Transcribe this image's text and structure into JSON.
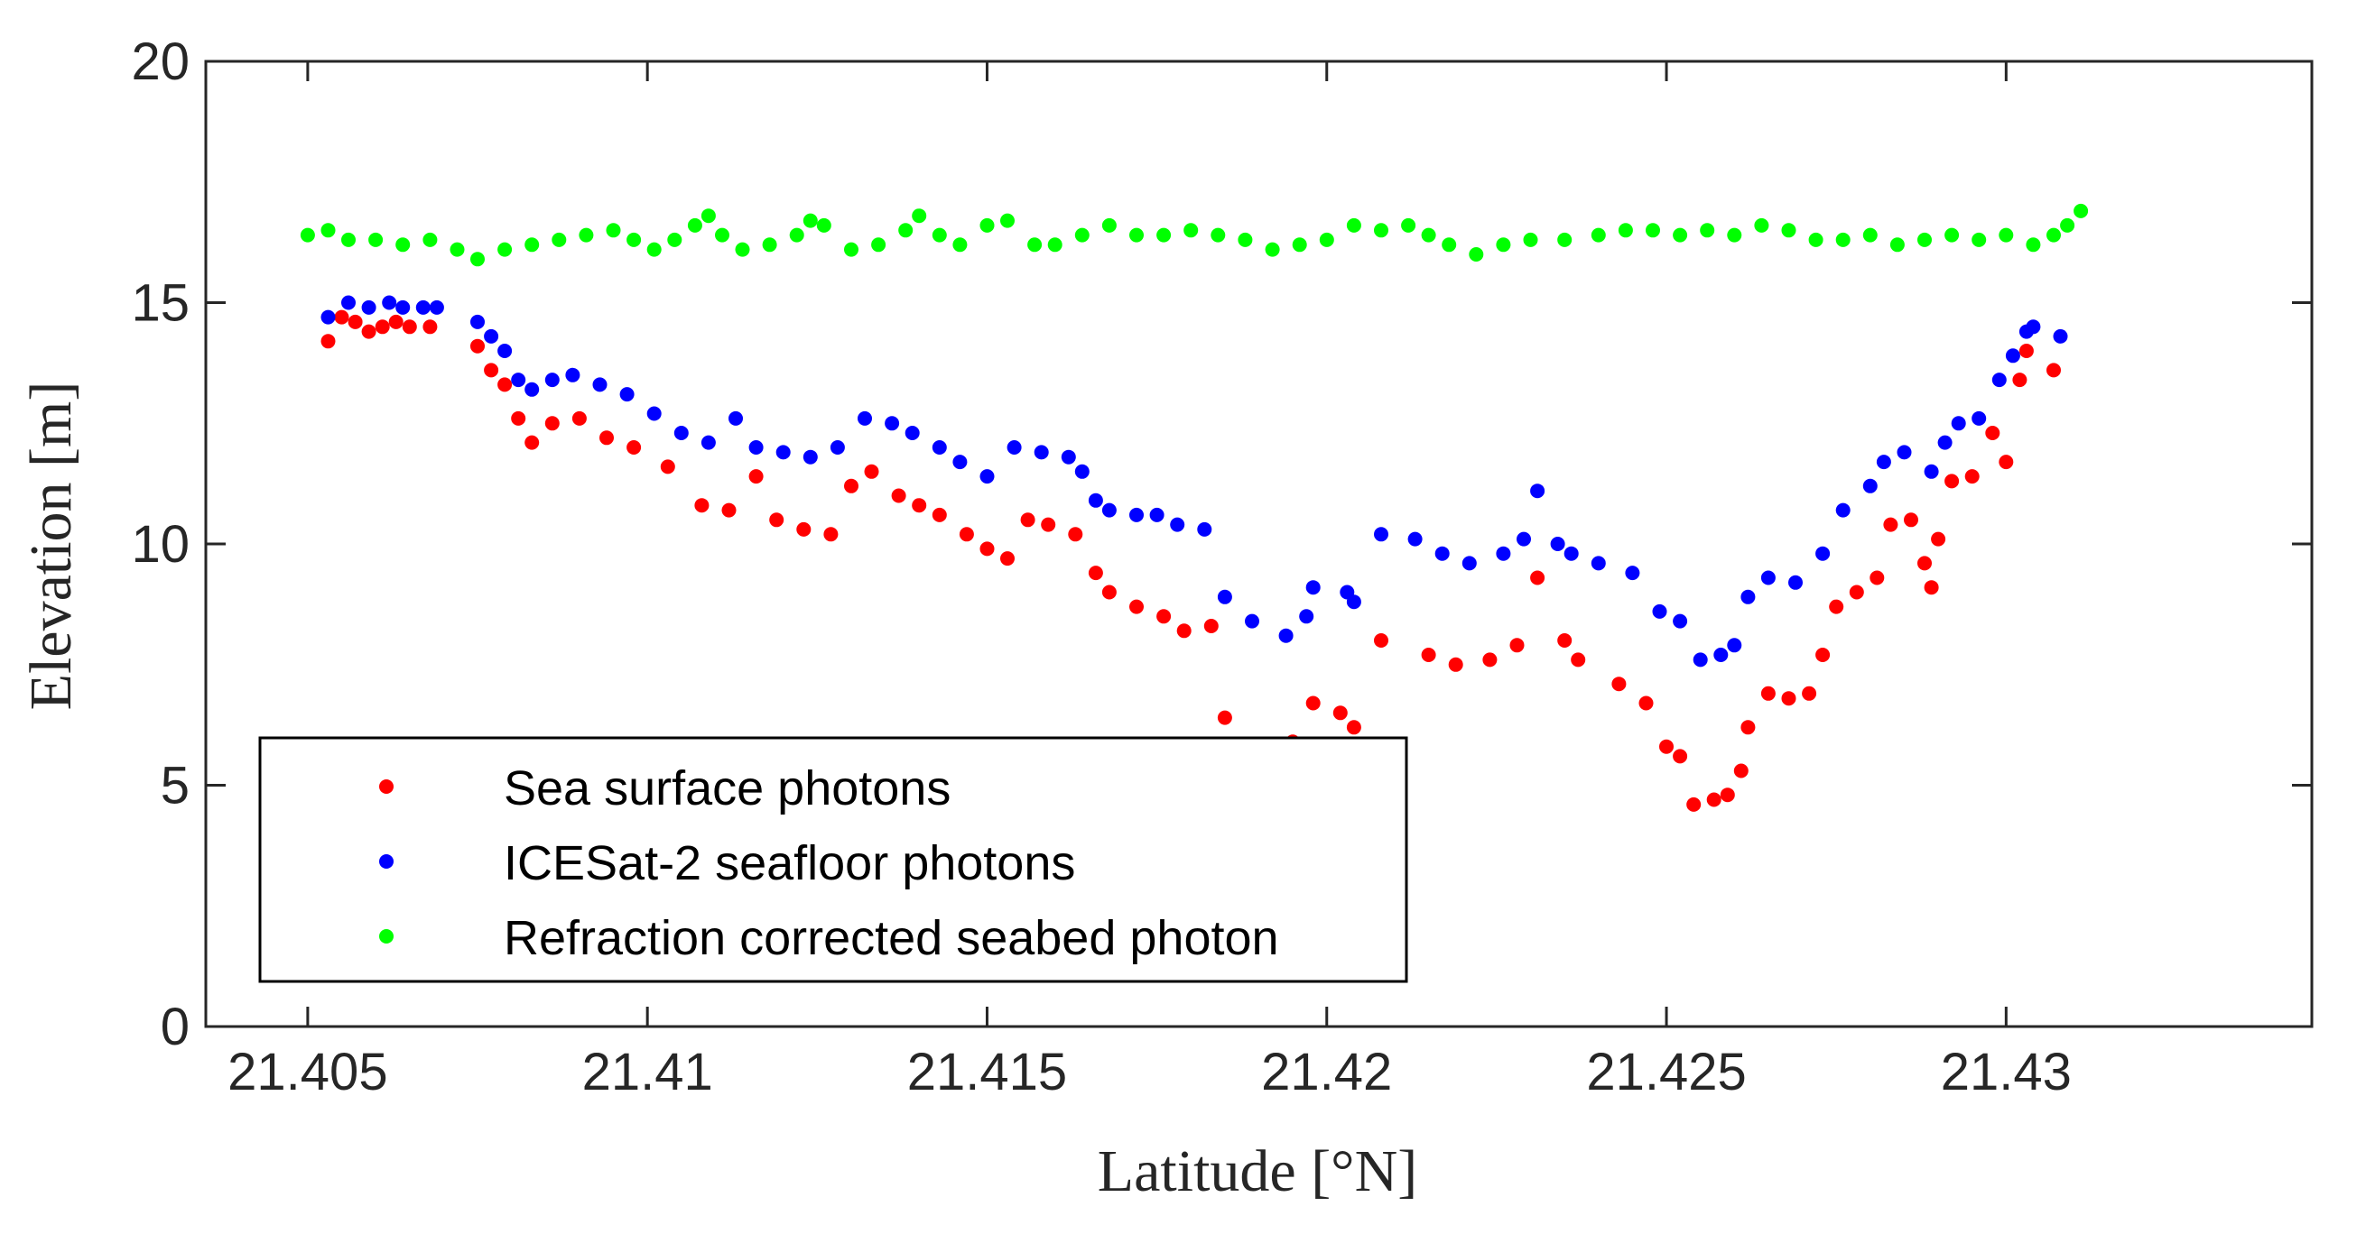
{
  "chart_data": {
    "type": "scatter",
    "title": "",
    "xlabel": "Latitude [°N]",
    "ylabel": "Elevation [m]",
    "xlim": [
      21.4035,
      21.4345
    ],
    "ylim": [
      0,
      20
    ],
    "xticks": [
      21.405,
      21.41,
      21.415,
      21.42,
      21.425,
      21.43
    ],
    "xtick_labels": [
      "21.405",
      "21.41",
      "21.415",
      "21.42",
      "21.425",
      "21.43"
    ],
    "yticks": [
      0,
      5,
      10,
      15,
      20
    ],
    "ytick_labels": [
      "0",
      "5",
      "10",
      "15",
      "20"
    ],
    "grid": false,
    "legend_position": "lower-left",
    "series": [
      {
        "name": "Sea surface photons",
        "color": "#ff0000",
        "points": [
          [
            21.4053,
            14.2
          ],
          [
            21.4055,
            14.7
          ],
          [
            21.4057,
            14.6
          ],
          [
            21.4059,
            14.4
          ],
          [
            21.4061,
            14.5
          ],
          [
            21.4063,
            14.6
          ],
          [
            21.4065,
            14.5
          ],
          [
            21.4068,
            14.5
          ],
          [
            21.4075,
            14.1
          ],
          [
            21.4077,
            13.6
          ],
          [
            21.4079,
            13.3
          ],
          [
            21.4081,
            12.6
          ],
          [
            21.4083,
            12.1
          ],
          [
            21.4086,
            12.5
          ],
          [
            21.409,
            12.6
          ],
          [
            21.4094,
            12.2
          ],
          [
            21.4098,
            12.0
          ],
          [
            21.4103,
            11.6
          ],
          [
            21.4108,
            10.8
          ],
          [
            21.4112,
            10.7
          ],
          [
            21.4116,
            11.4
          ],
          [
            21.4119,
            10.5
          ],
          [
            21.4123,
            10.3
          ],
          [
            21.4127,
            10.2
          ],
          [
            21.413,
            11.2
          ],
          [
            21.4133,
            11.5
          ],
          [
            21.4137,
            11.0
          ],
          [
            21.414,
            10.8
          ],
          [
            21.4143,
            10.6
          ],
          [
            21.4147,
            10.2
          ],
          [
            21.415,
            9.9
          ],
          [
            21.4153,
            9.7
          ],
          [
            21.4156,
            10.5
          ],
          [
            21.4159,
            10.4
          ],
          [
            21.4163,
            10.2
          ],
          [
            21.4166,
            9.4
          ],
          [
            21.4168,
            9.0
          ],
          [
            21.4172,
            8.7
          ],
          [
            21.4176,
            8.5
          ],
          [
            21.4179,
            8.2
          ],
          [
            21.4183,
            8.3
          ],
          [
            21.4185,
            6.4
          ],
          [
            21.4195,
            5.9
          ],
          [
            21.4198,
            6.7
          ],
          [
            21.4202,
            6.5
          ],
          [
            21.4204,
            6.2
          ],
          [
            21.4208,
            8.0
          ],
          [
            21.4215,
            7.7
          ],
          [
            21.4219,
            7.5
          ],
          [
            21.4224,
            7.6
          ],
          [
            21.4228,
            7.9
          ],
          [
            21.4231,
            9.3
          ],
          [
            21.4235,
            8.0
          ],
          [
            21.4237,
            7.6
          ],
          [
            21.4243,
            7.1
          ],
          [
            21.4247,
            6.7
          ],
          [
            21.425,
            5.8
          ],
          [
            21.4252,
            5.6
          ],
          [
            21.4254,
            4.6
          ],
          [
            21.4257,
            4.7
          ],
          [
            21.4259,
            4.8
          ],
          [
            21.4261,
            5.3
          ],
          [
            21.4262,
            6.2
          ],
          [
            21.4265,
            6.9
          ],
          [
            21.4268,
            6.8
          ],
          [
            21.4271,
            6.9
          ],
          [
            21.4273,
            7.7
          ],
          [
            21.4275,
            8.7
          ],
          [
            21.4278,
            9.0
          ],
          [
            21.4281,
            9.3
          ],
          [
            21.4283,
            10.4
          ],
          [
            21.4286,
            10.5
          ],
          [
            21.4288,
            9.6
          ],
          [
            21.4289,
            9.1
          ],
          [
            21.429,
            10.1
          ],
          [
            21.4292,
            11.3
          ],
          [
            21.4295,
            11.4
          ],
          [
            21.4298,
            12.3
          ],
          [
            21.43,
            11.7
          ],
          [
            21.4302,
            13.4
          ],
          [
            21.4303,
            14.0
          ],
          [
            21.4307,
            13.6
          ]
        ]
      },
      {
        "name": "ICESat-2 seafloor photons",
        "color": "#0000ff",
        "points": [
          [
            21.4053,
            14.7
          ],
          [
            21.4056,
            15.0
          ],
          [
            21.4059,
            14.9
          ],
          [
            21.4062,
            15.0
          ],
          [
            21.4064,
            14.9
          ],
          [
            21.4067,
            14.9
          ],
          [
            21.4069,
            14.9
          ],
          [
            21.4075,
            14.6
          ],
          [
            21.4077,
            14.3
          ],
          [
            21.4079,
            14.0
          ],
          [
            21.4081,
            13.4
          ],
          [
            21.4083,
            13.2
          ],
          [
            21.4086,
            13.4
          ],
          [
            21.4089,
            13.5
          ],
          [
            21.4093,
            13.3
          ],
          [
            21.4097,
            13.1
          ],
          [
            21.4101,
            12.7
          ],
          [
            21.4105,
            12.3
          ],
          [
            21.4109,
            12.1
          ],
          [
            21.4113,
            12.6
          ],
          [
            21.4116,
            12.0
          ],
          [
            21.412,
            11.9
          ],
          [
            21.4124,
            11.8
          ],
          [
            21.4128,
            12.0
          ],
          [
            21.4132,
            12.6
          ],
          [
            21.4136,
            12.5
          ],
          [
            21.4139,
            12.3
          ],
          [
            21.4143,
            12.0
          ],
          [
            21.4146,
            11.7
          ],
          [
            21.415,
            11.4
          ],
          [
            21.4154,
            12.0
          ],
          [
            21.4158,
            11.9
          ],
          [
            21.4162,
            11.8
          ],
          [
            21.4164,
            11.5
          ],
          [
            21.4166,
            10.9
          ],
          [
            21.4168,
            10.7
          ],
          [
            21.4172,
            10.6
          ],
          [
            21.4175,
            10.6
          ],
          [
            21.4178,
            10.4
          ],
          [
            21.4182,
            10.3
          ],
          [
            21.4185,
            8.9
          ],
          [
            21.4189,
            8.4
          ],
          [
            21.4194,
            8.1
          ],
          [
            21.4197,
            8.5
          ],
          [
            21.4198,
            9.1
          ],
          [
            21.4203,
            9.0
          ],
          [
            21.4204,
            8.8
          ],
          [
            21.4208,
            10.2
          ],
          [
            21.4213,
            10.1
          ],
          [
            21.4217,
            9.8
          ],
          [
            21.4221,
            9.6
          ],
          [
            21.4226,
            9.8
          ],
          [
            21.4229,
            10.1
          ],
          [
            21.4231,
            11.1
          ],
          [
            21.4234,
            10.0
          ],
          [
            21.4236,
            9.8
          ],
          [
            21.424,
            9.6
          ],
          [
            21.4245,
            9.4
          ],
          [
            21.4249,
            8.6
          ],
          [
            21.4252,
            8.4
          ],
          [
            21.4255,
            7.6
          ],
          [
            21.4258,
            7.7
          ],
          [
            21.426,
            7.9
          ],
          [
            21.4262,
            8.9
          ],
          [
            21.4265,
            9.3
          ],
          [
            21.4269,
            9.2
          ],
          [
            21.4273,
            9.8
          ],
          [
            21.4276,
            10.7
          ],
          [
            21.428,
            11.2
          ],
          [
            21.4282,
            11.7
          ],
          [
            21.4285,
            11.9
          ],
          [
            21.4289,
            11.5
          ],
          [
            21.4291,
            12.1
          ],
          [
            21.4293,
            12.5
          ],
          [
            21.4296,
            12.6
          ],
          [
            21.4299,
            13.4
          ],
          [
            21.4301,
            13.9
          ],
          [
            21.4303,
            14.4
          ],
          [
            21.4304,
            14.5
          ],
          [
            21.4308,
            14.3
          ]
        ]
      },
      {
        "name": "Refraction corrected seabed photon",
        "color": "#00ff00",
        "points": [
          [
            21.405,
            16.4
          ],
          [
            21.4053,
            16.5
          ],
          [
            21.4056,
            16.3
          ],
          [
            21.406,
            16.3
          ],
          [
            21.4064,
            16.2
          ],
          [
            21.4068,
            16.3
          ],
          [
            21.4072,
            16.1
          ],
          [
            21.4075,
            15.9
          ],
          [
            21.4079,
            16.1
          ],
          [
            21.4083,
            16.2
          ],
          [
            21.4087,
            16.3
          ],
          [
            21.4091,
            16.4
          ],
          [
            21.4095,
            16.5
          ],
          [
            21.4098,
            16.3
          ],
          [
            21.4101,
            16.1
          ],
          [
            21.4104,
            16.3
          ],
          [
            21.4107,
            16.6
          ],
          [
            21.4109,
            16.8
          ],
          [
            21.4111,
            16.4
          ],
          [
            21.4114,
            16.1
          ],
          [
            21.4118,
            16.2
          ],
          [
            21.4122,
            16.4
          ],
          [
            21.4124,
            16.7
          ],
          [
            21.4126,
            16.6
          ],
          [
            21.413,
            16.1
          ],
          [
            21.4134,
            16.2
          ],
          [
            21.4138,
            16.5
          ],
          [
            21.414,
            16.8
          ],
          [
            21.4143,
            16.4
          ],
          [
            21.4146,
            16.2
          ],
          [
            21.415,
            16.6
          ],
          [
            21.4153,
            16.7
          ],
          [
            21.4157,
            16.2
          ],
          [
            21.416,
            16.2
          ],
          [
            21.4164,
            16.4
          ],
          [
            21.4168,
            16.6
          ],
          [
            21.4172,
            16.4
          ],
          [
            21.4176,
            16.4
          ],
          [
            21.418,
            16.5
          ],
          [
            21.4184,
            16.4
          ],
          [
            21.4188,
            16.3
          ],
          [
            21.4192,
            16.1
          ],
          [
            21.4196,
            16.2
          ],
          [
            21.42,
            16.3
          ],
          [
            21.4204,
            16.6
          ],
          [
            21.4208,
            16.5
          ],
          [
            21.4212,
            16.6
          ],
          [
            21.4215,
            16.4
          ],
          [
            21.4218,
            16.2
          ],
          [
            21.4222,
            16.0
          ],
          [
            21.4226,
            16.2
          ],
          [
            21.423,
            16.3
          ],
          [
            21.4235,
            16.3
          ],
          [
            21.424,
            16.4
          ],
          [
            21.4244,
            16.5
          ],
          [
            21.4248,
            16.5
          ],
          [
            21.4252,
            16.4
          ],
          [
            21.4256,
            16.5
          ],
          [
            21.426,
            16.4
          ],
          [
            21.4264,
            16.6
          ],
          [
            21.4268,
            16.5
          ],
          [
            21.4272,
            16.3
          ],
          [
            21.4276,
            16.3
          ],
          [
            21.428,
            16.4
          ],
          [
            21.4284,
            16.2
          ],
          [
            21.4288,
            16.3
          ],
          [
            21.4292,
            16.4
          ],
          [
            21.4296,
            16.3
          ],
          [
            21.43,
            16.4
          ],
          [
            21.4304,
            16.2
          ],
          [
            21.4307,
            16.4
          ],
          [
            21.4309,
            16.6
          ],
          [
            21.4311,
            16.9
          ]
        ]
      }
    ]
  }
}
